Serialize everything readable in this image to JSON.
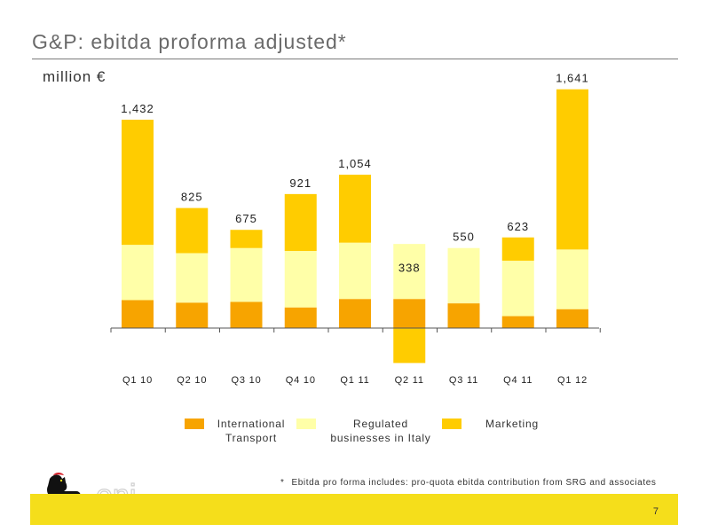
{
  "title": "G&P: ebitda proforma adjusted*",
  "subtitle": "million €",
  "colors": {
    "international_transport": "#f7a400",
    "regulated_businesses": "#ffffa8",
    "marketing": "#ffcc00",
    "footer_band": "#f5de1b"
  },
  "chart_data": {
    "type": "bar",
    "stacked": true,
    "categories": [
      "Q1 10",
      "Q2 10",
      "Q3 10",
      "Q4 10",
      "Q1 11",
      "Q2 11",
      "Q3 11",
      "Q4 11",
      "Q1 12"
    ],
    "totals": [
      1432,
      825,
      675,
      921,
      1054,
      338,
      550,
      623,
      1641
    ],
    "total_labels": [
      "1,432",
      "825",
      "675",
      "921",
      "1,054",
      "338",
      "550",
      "623",
      "1,641"
    ],
    "series": [
      {
        "name": "International Transport",
        "values": [
          192,
          175,
          180,
          142,
          200,
          200,
          170,
          82,
          130
        ]
      },
      {
        "name": "Regulated businesses in Italy",
        "values": [
          380,
          340,
          370,
          388,
          387,
          378,
          380,
          381,
          410
        ]
      },
      {
        "name": "Marketing",
        "values": [
          860,
          310,
          125,
          391,
          467,
          -240,
          0,
          160,
          1101
        ]
      }
    ],
    "ylim": [
      -260,
      1700
    ],
    "grid": false
  },
  "legend": [
    {
      "line1": "International",
      "line2": "Transport"
    },
    {
      "line1": "Regulated",
      "line2": "businesses in Italy"
    },
    {
      "line1": "Marketing",
      "line2": ""
    }
  ],
  "footnote": {
    "marker": "*",
    "text": "Ebitda pro forma includes: pro-quota ebitda contribution from SRG and associates"
  },
  "logo_text": "eni",
  "page_number": "7"
}
